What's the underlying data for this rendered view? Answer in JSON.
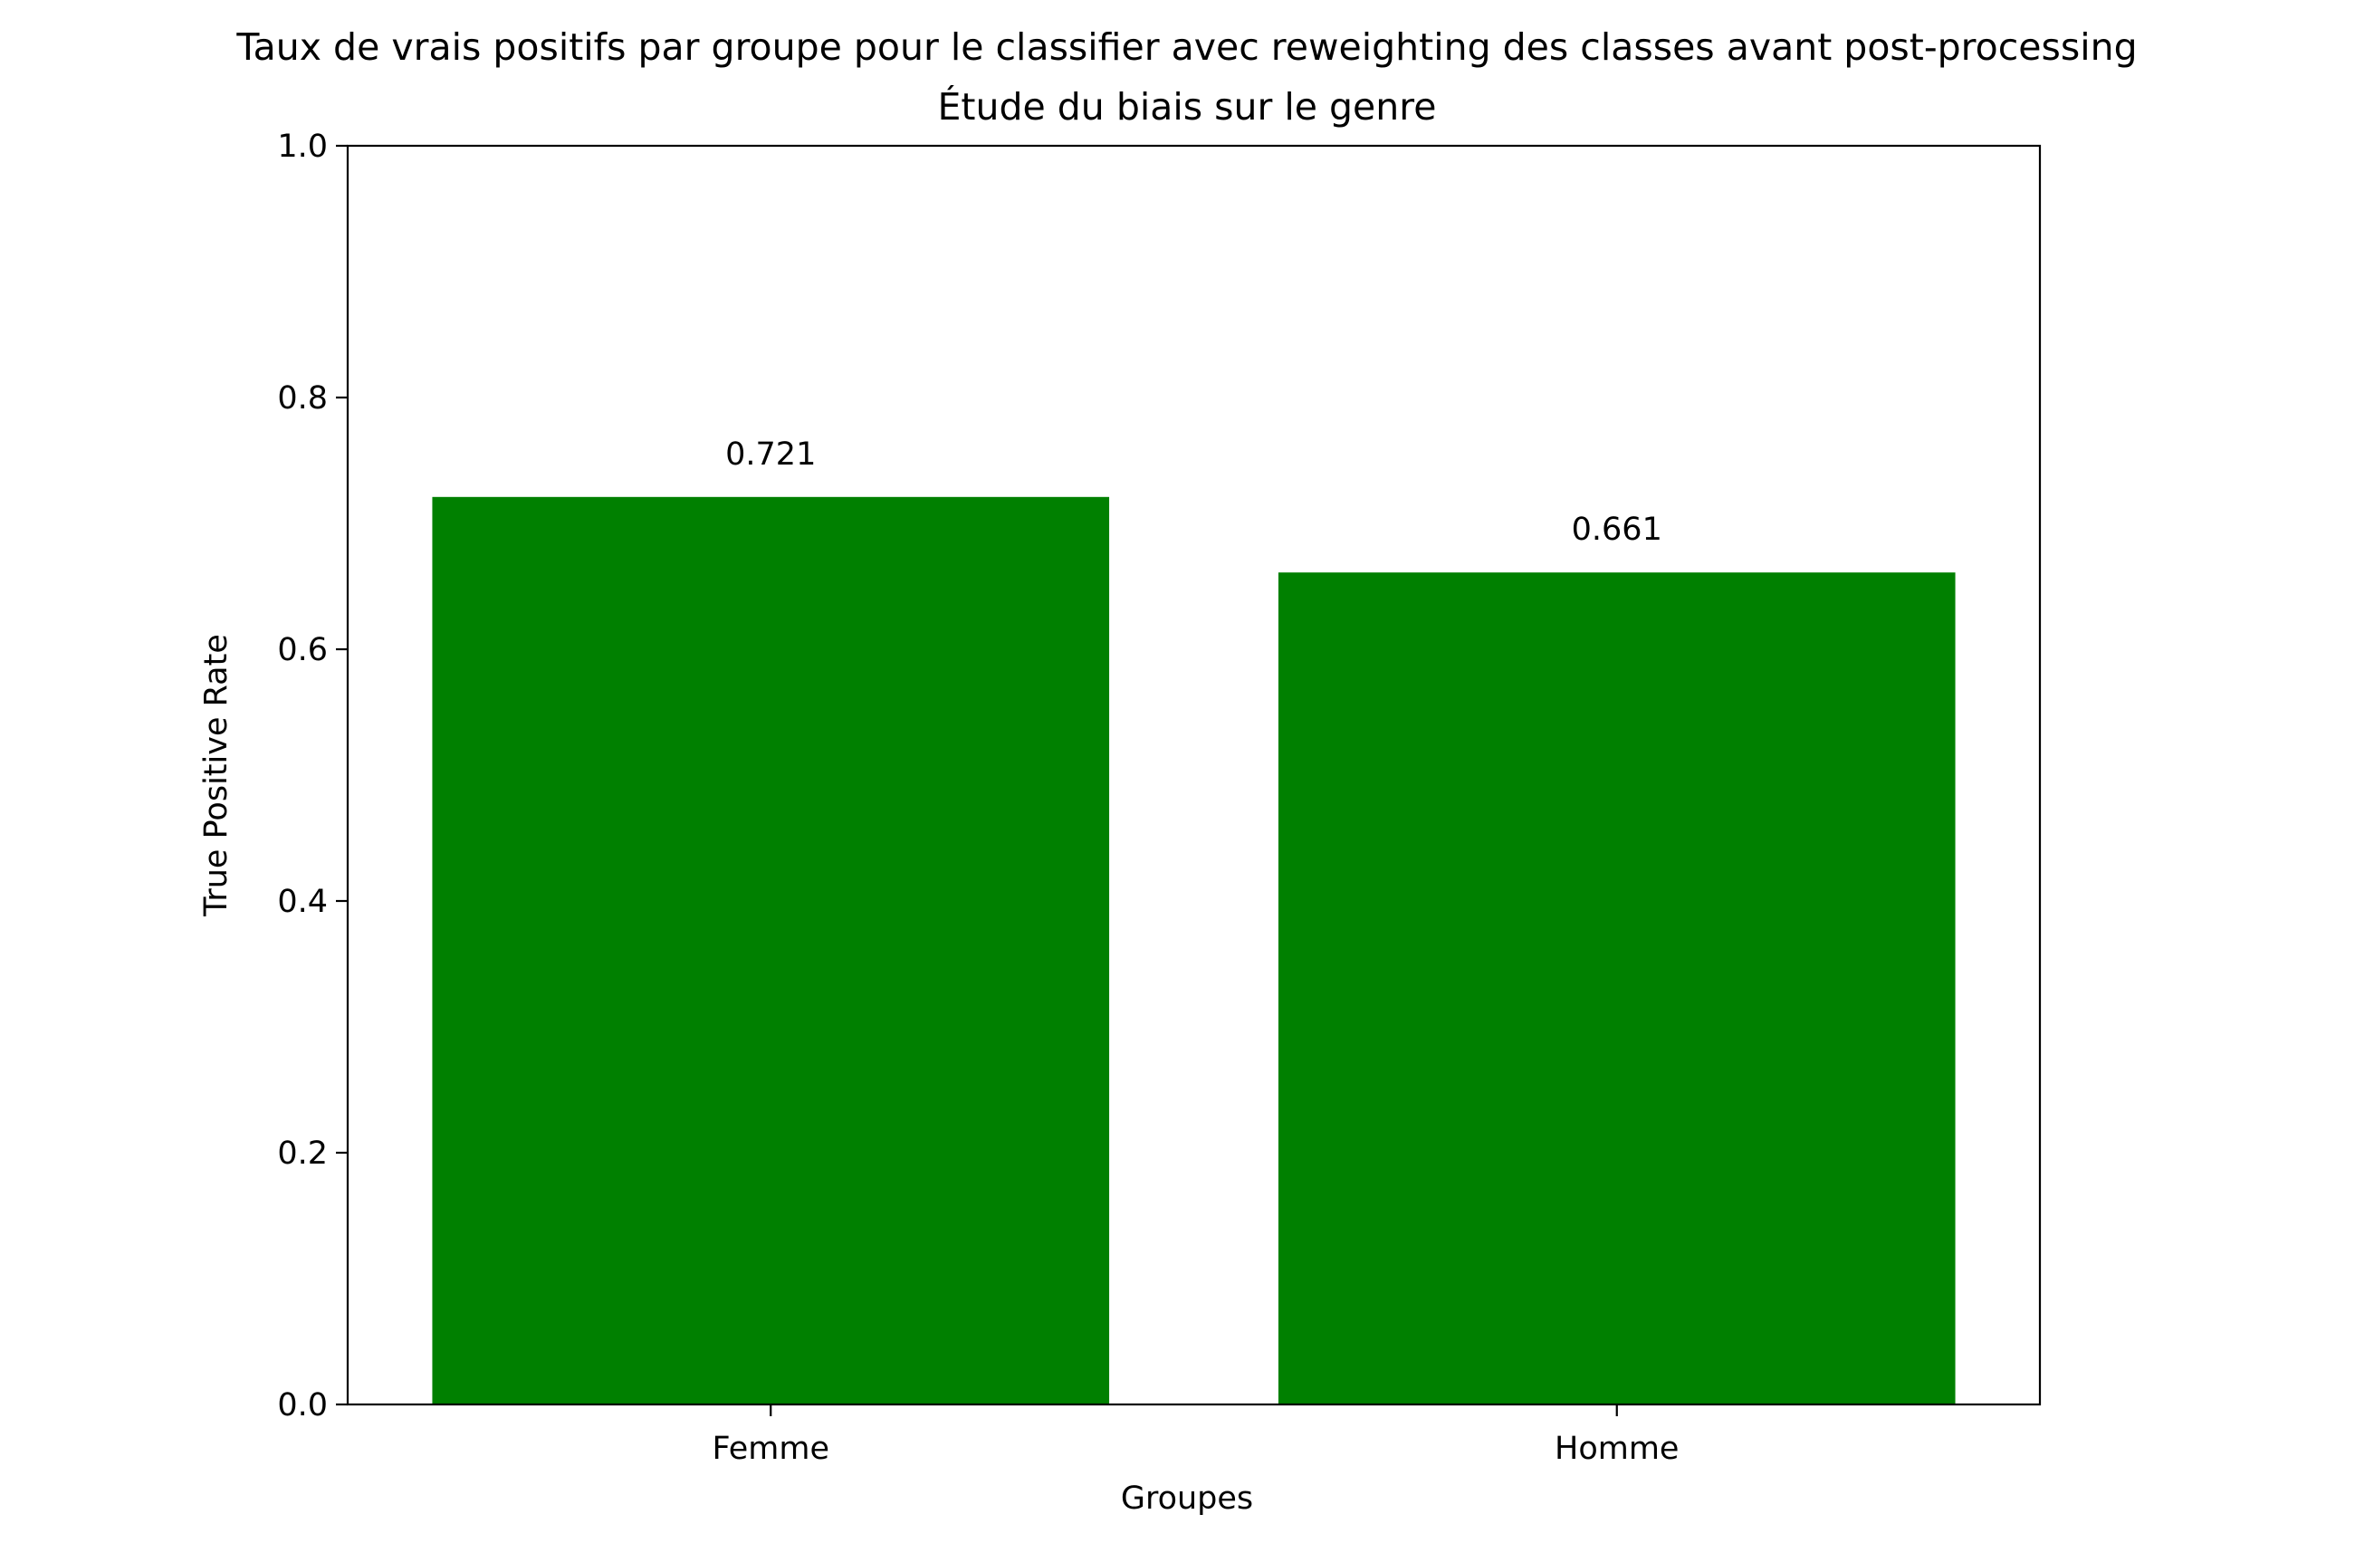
{
  "chart_data": {
    "type": "bar",
    "title": "Taux de vrais positifs par groupe pour le classifier avec reweighting des classes avant post-processing",
    "subtitle": "Étude du biais sur le genre",
    "xlabel": "Groupes",
    "ylabel": "True Positive Rate",
    "categories": [
      "Femme",
      "Homme"
    ],
    "values": [
      0.721,
      0.661
    ],
    "data_labels": [
      "0.721",
      "0.661"
    ],
    "ylim": [
      0,
      1
    ],
    "yticks": [
      0.0,
      0.2,
      0.4,
      0.6,
      0.8,
      1.0
    ],
    "ytick_labels": [
      "0.0",
      "0.2",
      "0.4",
      "0.6",
      "0.8",
      "1.0"
    ],
    "bar_color": "#008000",
    "grid": false,
    "legend": "none"
  }
}
